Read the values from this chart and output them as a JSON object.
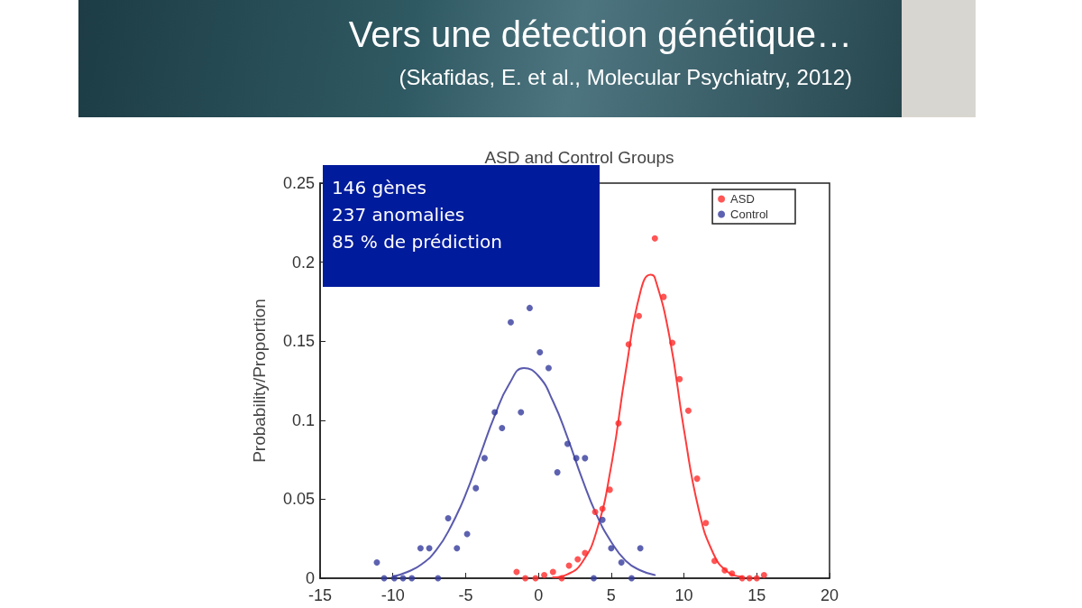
{
  "chart_data": {
    "type": "scatter",
    "title": "ASD and Control Groups",
    "ylabel": "Probability/Proportion",
    "annotations": [
      "Vers une détection génétique…",
      "(Skafidas, E. et al., Molecular Psychiatry, 2012)",
      "146 gènes",
      "237 anomalies",
      "85 % de prédiction"
    ],
    "xlim": [
      -15,
      20
    ],
    "xticks": [
      -15,
      -10,
      -5,
      0,
      5,
      10,
      15,
      20
    ],
    "ylim": [
      0,
      0.25
    ],
    "yticks": [
      0,
      0.05,
      0.1,
      0.15,
      0.2,
      0.25
    ],
    "grid": false,
    "legend": "top right",
    "series": [
      {
        "name": "ASD",
        "marker": "circle",
        "color": "#ff2a2a",
        "x": [
          -1.5,
          -0.9,
          -0.2,
          0.4,
          1.0,
          1.6,
          2.1,
          2.7,
          3.2,
          3.9,
          4.4,
          4.9,
          5.5,
          6.2,
          6.9,
          8.0,
          8.6,
          9.2,
          9.7,
          10.3,
          10.9,
          11.5,
          12.1,
          12.8,
          13.3,
          14.0,
          14.5,
          15.0,
          15.5
        ],
        "values": [
          0.004,
          0,
          0,
          0.002,
          0.004,
          0,
          0.008,
          0.012,
          0.016,
          0.042,
          0.044,
          0.056,
          0.098,
          0.148,
          0.166,
          0.215,
          0.178,
          0.149,
          0.126,
          0.106,
          0.063,
          0.035,
          0.011,
          0.005,
          0.003,
          0,
          0,
          0,
          0.002
        ]
      },
      {
        "name": "Control",
        "marker": "circle",
        "color": "#353b9c",
        "x": [
          -11.1,
          -10.6,
          -9.9,
          -9.3,
          -8.7,
          -8.1,
          -7.5,
          -6.9,
          -6.2,
          -5.6,
          -4.9,
          -4.3,
          -3.7,
          -3.0,
          -2.5,
          -1.9,
          -1.2,
          -0.6,
          0.1,
          0.7,
          1.3,
          2.0,
          2.6,
          3.2,
          3.8,
          4.4,
          5.0,
          5.7,
          6.4,
          7.0
        ],
        "values": [
          0.01,
          0,
          0,
          0,
          0,
          0.019,
          0.019,
          0,
          0.038,
          0.019,
          0.028,
          0.057,
          0.076,
          0.105,
          0.095,
          0.162,
          0.105,
          0.171,
          0.143,
          0.133,
          0.067,
          0.085,
          0.076,
          0.076,
          0,
          0.037,
          0.019,
          0.01,
          0,
          0.019
        ]
      },
      {
        "type": "line",
        "marker": "none",
        "color": "#ff3b3b",
        "x": [
          1,
          2,
          3,
          4,
          5,
          6,
          7,
          7.7,
          8,
          9,
          10,
          11,
          12,
          13,
          14
        ],
        "values": [
          0.0005,
          0.0025,
          0.01,
          0.03,
          0.071,
          0.131,
          0.181,
          0.192,
          0.19,
          0.153,
          0.094,
          0.044,
          0.016,
          0.004,
          0.001
        ]
      },
      {
        "type": "line",
        "marker": "none",
        "color": "#5a5aae",
        "x": [
          -10,
          -9,
          -8,
          -7,
          -6,
          -5,
          -4,
          -3,
          -2,
          -1,
          0,
          1,
          2,
          3,
          4,
          5,
          6,
          7,
          8
        ],
        "values": [
          0.001,
          0.004,
          0.009,
          0.018,
          0.033,
          0.053,
          0.078,
          0.103,
          0.123,
          0.133,
          0.128,
          0.112,
          0.089,
          0.063,
          0.04,
          0.023,
          0.011,
          0.005,
          0.002
        ]
      }
    ]
  }
}
